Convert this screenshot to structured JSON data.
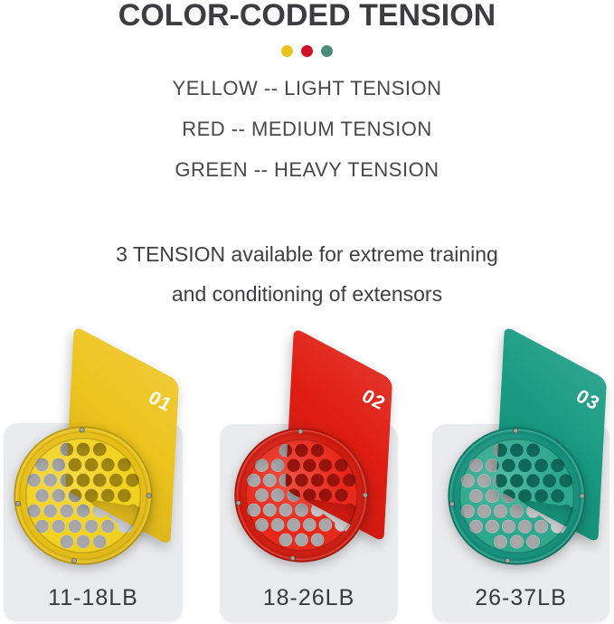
{
  "title": "COLOR-CODED TENSION",
  "legend_dots": [
    {
      "name": "yellow-dot",
      "color": "#e8c320"
    },
    {
      "name": "red-dot",
      "color": "#ce1124"
    },
    {
      "name": "green-dot",
      "color": "#4b8d78"
    }
  ],
  "legend_lines": [
    "YELLOW  -- LIGHT TENSION",
    "RED -- MEDIUM TENSION",
    "GREEN -- HEAVY TENSION"
  ],
  "description_lines": [
    "3 TENSION available for extreme training",
    "and conditioning of extensors"
  ],
  "panel_color": "#eaebed",
  "background_color": "#ffffff",
  "products": [
    {
      "number": "01",
      "weight": "11-18LB",
      "tension_level": "light",
      "card_color": "#edc41d",
      "web_color": "#f2d21d",
      "rim_color": "#e5bd14"
    },
    {
      "number": "02",
      "weight": "18-26LB",
      "tension_level": "medium",
      "card_color": "#e01d12",
      "web_color": "#e72618",
      "rim_color": "#d01a0e"
    },
    {
      "number": "03",
      "weight": "26-37LB",
      "tension_level": "heavy",
      "card_color": "#189b82",
      "web_color": "#2ba78c",
      "rim_color": "#13907a"
    }
  ]
}
